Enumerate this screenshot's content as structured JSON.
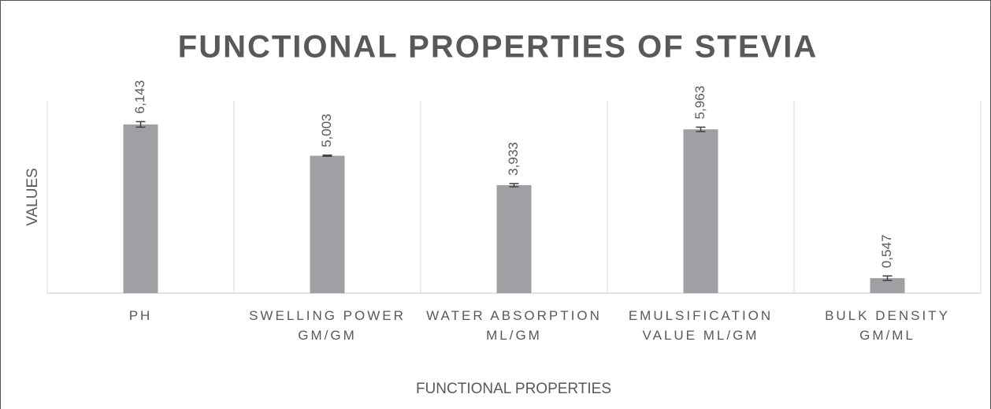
{
  "chart_data": {
    "type": "bar",
    "title": "FUNCTIONAL PROPERTIES OF STEVIA",
    "x_label": "FUNCTIONAL PROPERTIES",
    "y_label": "VALUES",
    "categories": [
      "PH",
      "SWELLING POWER GM/GM",
      "WATER ABSORPTION ML/GM",
      "EMULSIFICATION VALUE ML/GM",
      "BULK DENSITY GM/ML"
    ],
    "values": [
      6.143,
      5.003,
      3.933,
      5.963,
      0.547
    ],
    "value_labels": [
      "6,143",
      "5,003",
      "3,933",
      "5,963",
      "0,547"
    ],
    "errors": [
      0.1,
      0.02,
      0.06,
      0.08,
      0.08
    ],
    "color": "#a0a0a4",
    "ylim": [
      0,
      7
    ]
  }
}
